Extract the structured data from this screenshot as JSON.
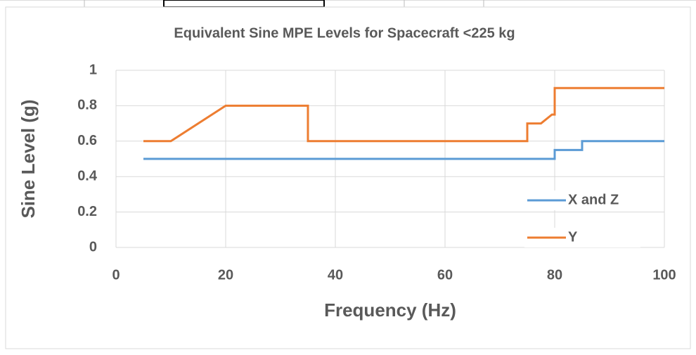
{
  "chart_data": {
    "type": "line",
    "title": "Equivalent Sine MPE Levels for Spacecraft <225 kg",
    "x_label": "Frequency (Hz)",
    "y_label": "Sine Level (g)",
    "xlim": [
      0,
      100
    ],
    "xticks": [
      0,
      20,
      40,
      60,
      80,
      100
    ],
    "ylim": [
      0,
      1
    ],
    "yticks": [
      0,
      0.2,
      0.4,
      0.6,
      0.8,
      1
    ],
    "grid": true,
    "legend": "lower right",
    "series": [
      {
        "name": "X and Z",
        "color": "#5b9bd5",
        "x": [
          5,
          80,
          80,
          85,
          85,
          100
        ],
        "values": [
          0.5,
          0.5,
          0.55,
          0.55,
          0.6,
          0.6
        ]
      },
      {
        "name": "Y",
        "color": "#ed7d31",
        "x": [
          5,
          10,
          20,
          35,
          35,
          75,
          75,
          77.5,
          79.5,
          80,
          80,
          100
        ],
        "values": [
          0.6,
          0.6,
          0.8,
          0.8,
          0.6,
          0.6,
          0.7,
          0.7,
          0.75,
          0.75,
          0.9,
          0.9
        ]
      }
    ]
  }
}
